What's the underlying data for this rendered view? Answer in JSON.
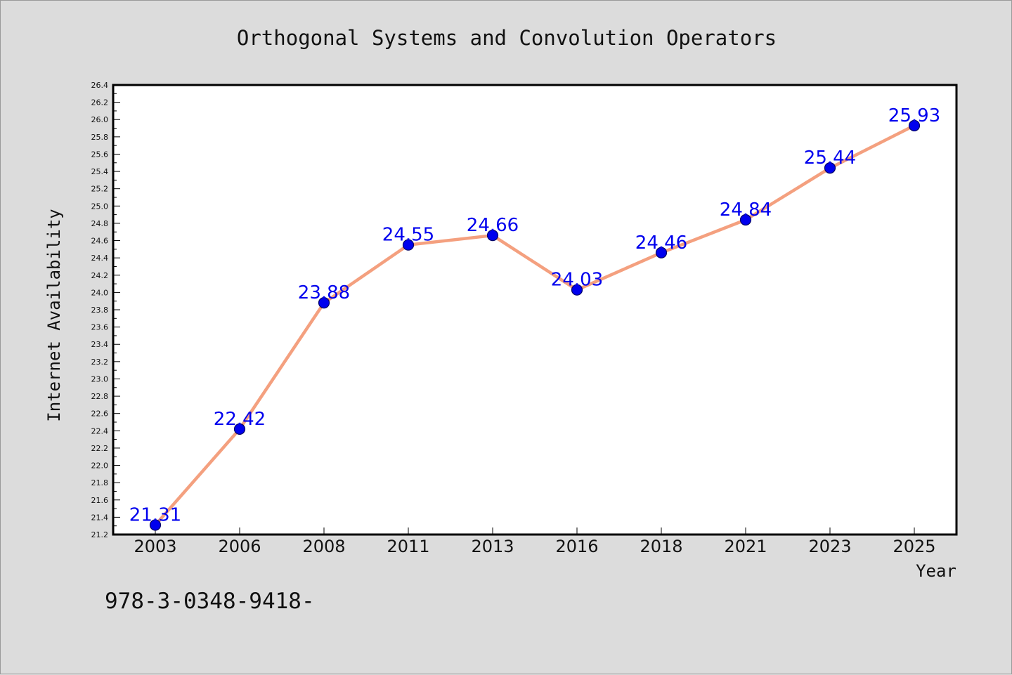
{
  "chart_data": {
    "type": "line",
    "title": "Orthogonal Systems and Convolution Operators",
    "xlabel": "Year",
    "ylabel": "Internet Availability",
    "categories": [
      "2003",
      "2006",
      "2008",
      "2011",
      "2013",
      "2016",
      "2018",
      "2021",
      "2023",
      "2025"
    ],
    "series": [
      {
        "values": [
          21.31,
          22.42,
          23.88,
          24.55,
          24.66,
          24.03,
          24.46,
          24.84,
          25.44,
          25.93
        ]
      }
    ],
    "data_labels": [
      "21.31",
      "22.42",
      "23.88",
      "24.55",
      "24.66",
      "24.03",
      "24.46",
      "24.84",
      "25.44",
      "25.93"
    ],
    "ylim": [
      21.2,
      26.4
    ],
    "ytick_step": 0.2,
    "grid": false,
    "legend": "none",
    "colors": {
      "line": "#f4a07f",
      "marker_fill": "#0000ee",
      "marker_edge": "#000066",
      "data_label": "#0000ee",
      "background": "#dcdcdc",
      "plot_area": "#ffffff"
    }
  },
  "footer": {
    "text": "978-3-0348-9418-"
  }
}
